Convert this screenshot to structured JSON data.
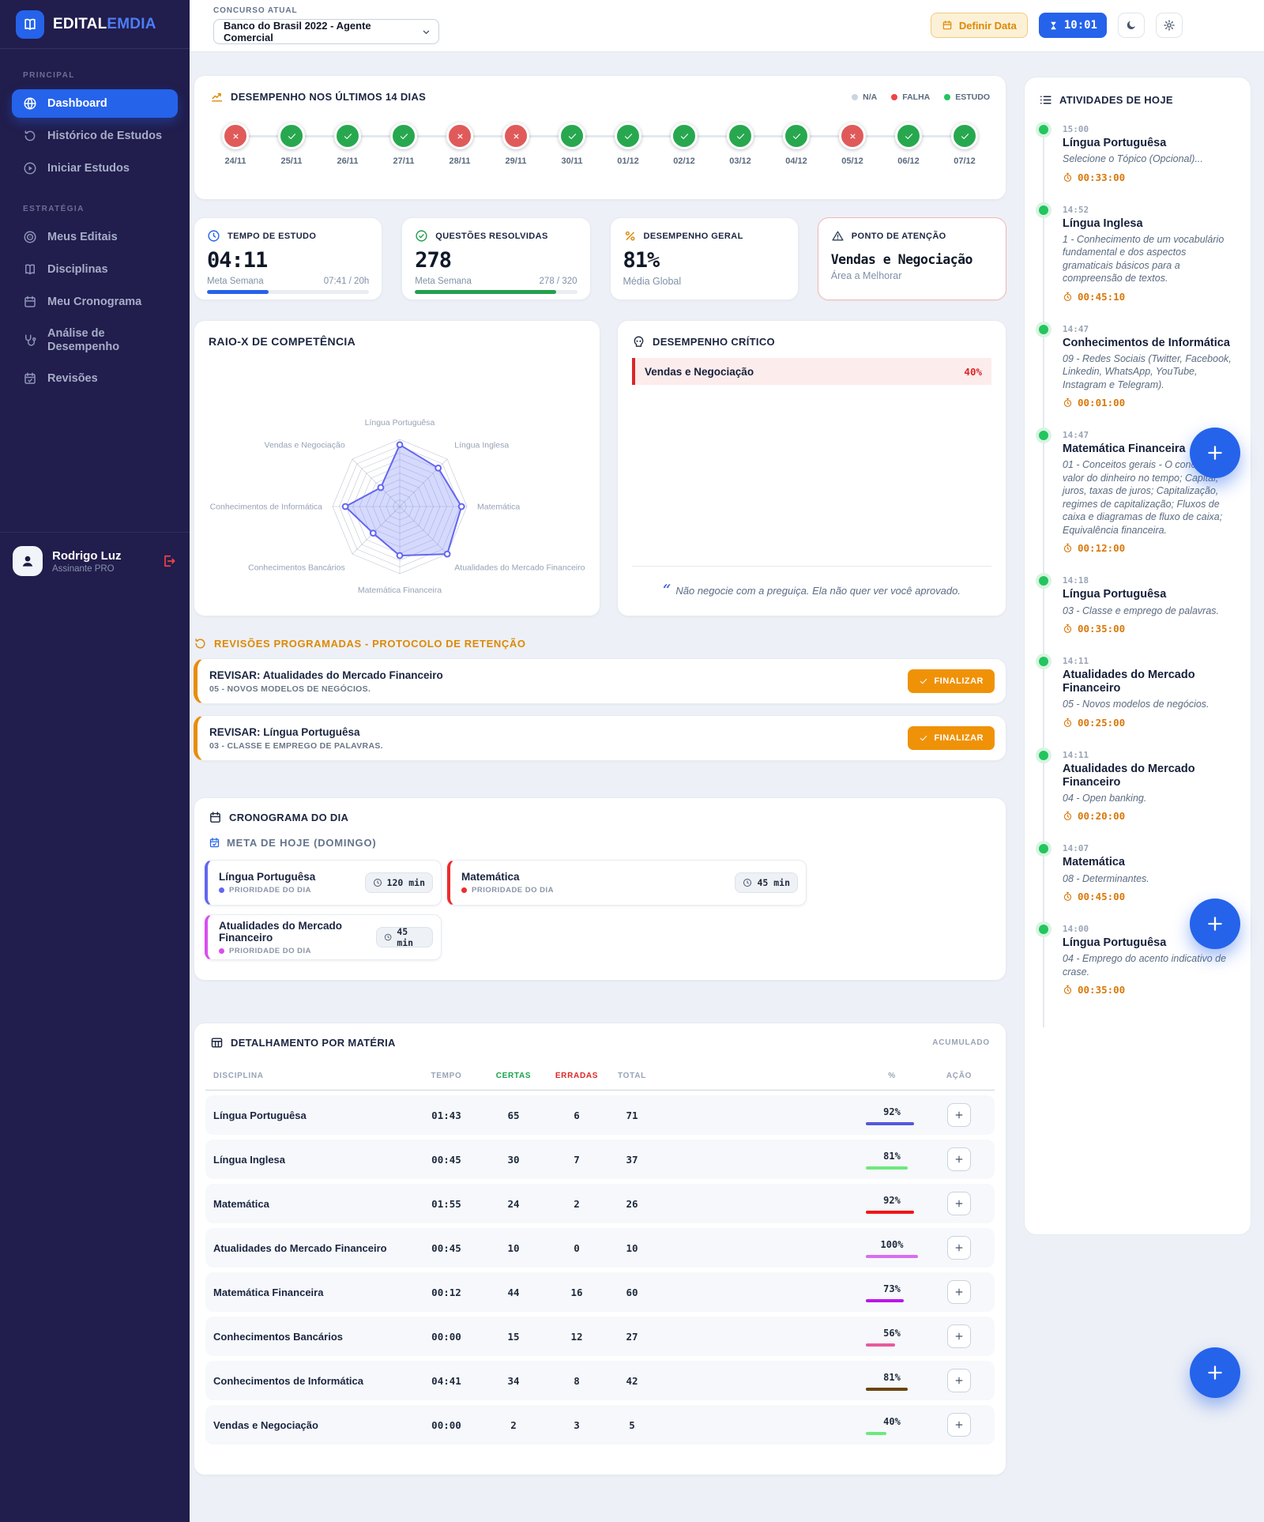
{
  "brand": {
    "name_primary": "EDITAL",
    "name_secondary": "EMDIA"
  },
  "topbar": {
    "label": "CONCURSO ATUAL",
    "contest": "Banco do Brasil 2022 - Agente Comercial",
    "definir_data": "Definir Data",
    "timer": "10:01"
  },
  "sidebar": {
    "sections": [
      {
        "label": "PRINCIPAL",
        "items": [
          {
            "icon": "globe",
            "label": "Dashboard",
            "active": true
          },
          {
            "icon": "history",
            "label": "Histórico de Estudos",
            "active": false
          },
          {
            "icon": "play",
            "label": "Iniciar Estudos",
            "active": false
          }
        ]
      },
      {
        "label": "ESTRATÉGIA",
        "items": [
          {
            "icon": "target",
            "label": "Meus Editais",
            "active": false
          },
          {
            "icon": "book",
            "label": "Disciplinas",
            "active": false
          },
          {
            "icon": "calendar",
            "label": "Meu Cronograma",
            "active": false
          },
          {
            "icon": "stethoscope",
            "label": "Análise de Desempenho",
            "active": false
          },
          {
            "icon": "calendar-check",
            "label": "Revisões",
            "active": false
          }
        ]
      }
    ],
    "user": {
      "name": "Rodrigo Luz",
      "plan": "Assinante PRO"
    }
  },
  "performance": {
    "title": "DESEMPENHO NOS ÚLTIMOS 14 DIAS",
    "legend": [
      {
        "label": "N/A",
        "color": "#cbd5e1"
      },
      {
        "label": "FALHA",
        "color": "#ef4444"
      },
      {
        "label": "ESTUDO",
        "color": "#22c55e"
      }
    ],
    "days": [
      {
        "date": "24/11",
        "status": "fail"
      },
      {
        "date": "25/11",
        "status": "ok"
      },
      {
        "date": "26/11",
        "status": "ok"
      },
      {
        "date": "27/11",
        "status": "ok"
      },
      {
        "date": "28/11",
        "status": "fail"
      },
      {
        "date": "29/11",
        "status": "fail"
      },
      {
        "date": "30/11",
        "status": "ok"
      },
      {
        "date": "01/12",
        "status": "ok"
      },
      {
        "date": "02/12",
        "status": "ok"
      },
      {
        "date": "03/12",
        "status": "ok"
      },
      {
        "date": "04/12",
        "status": "ok"
      },
      {
        "date": "05/12",
        "status": "fail"
      },
      {
        "date": "06/12",
        "status": "ok"
      },
      {
        "date": "07/12",
        "status": "ok"
      }
    ]
  },
  "stats": {
    "tempo": {
      "title": "TEMPO DE ESTUDO",
      "value": "04:11",
      "meta_label": "Meta Semana",
      "meta_value": "07:41 / 20h",
      "pct": 38,
      "color": "#2563eb"
    },
    "questoes": {
      "title": "QUESTÕES RESOLVIDAS",
      "value": "278",
      "meta_label": "Meta Semana",
      "meta_value": "278 / 320",
      "pct": 87,
      "color": "#21a04d"
    },
    "geral": {
      "title": "DESEMPENHO GERAL",
      "value": "81%",
      "caption": "Média Global"
    },
    "atencao": {
      "title": "PONTO DE ATENÇÃO",
      "value": "Vendas e Negociação",
      "caption": "Área a Melhorar"
    }
  },
  "chart_data": {
    "type": "radar",
    "title": "RAIO-X DE COMPETÊNCIA",
    "categories": [
      "Língua Portuguêsa",
      "Língua Inglesa",
      "Matemática",
      "Atualidades do Mercado Financeiro",
      "Matemática Financeira",
      "Conhecimentos Bancários",
      "Conhecimentos de Informática",
      "Vendas e Negociação"
    ],
    "values": [
      92,
      81,
      92,
      100,
      73,
      56,
      81,
      40
    ],
    "max": 100,
    "grid_levels": 10,
    "stroke": "#6366f1",
    "fill": "rgba(129,140,248,0.33)"
  },
  "critical": {
    "title": "DESEMPENHO CRÍTICO",
    "subject": "Vendas e Negociação",
    "value": "40%",
    "quote": "Não negocie com a preguiça. Ela não quer ver você aprovado."
  },
  "revisoes": {
    "title": "REVISÕES PROGRAMADAS - PROTOCOLO DE RETENÇÃO",
    "button": "FINALIZAR",
    "items": [
      {
        "title": "REVISAR: Atualidades do Mercado Financeiro",
        "topic": "05 - NOVOS MODELOS DE NEGÓCIOS."
      },
      {
        "title": "REVISAR: Língua Portuguêsa",
        "topic": "03 - CLASSE E EMPREGO DE PALAVRAS."
      }
    ]
  },
  "cronograma": {
    "title": "CRONOGRAMA DO DIA",
    "subtitle": "META DE HOJE (DOMINGO)",
    "priority_label": "PRIORIDADE DO DIA",
    "tasks": [
      {
        "name": "Língua Portuguêsa",
        "duration": "120 min",
        "color": "#6366f1"
      },
      {
        "name": "Matemática",
        "duration": "45 min",
        "color": "#ee2c2c"
      },
      {
        "name": "Atualidades do Mercado Financeiro",
        "duration": "45 min",
        "color": "#d94ef0"
      }
    ]
  },
  "detalhamento": {
    "title": "DETALHAMENTO POR MATÉRIA",
    "badge": "ACUMULADO",
    "columns": [
      "DISCIPLINA",
      "TEMPO",
      "CERTAS",
      "ERRADAS",
      "TOTAL",
      "%",
      "AÇÃO"
    ],
    "rows": [
      {
        "name": "Língua Portuguêsa",
        "tempo": "01:43",
        "certas": "65",
        "erradas": "6",
        "total": "71",
        "pct": 92,
        "bar": "#5558dd"
      },
      {
        "name": "Língua Inglesa",
        "tempo": "00:45",
        "certas": "30",
        "erradas": "7",
        "total": "37",
        "pct": 81,
        "bar": "#6ee87e"
      },
      {
        "name": "Matemática",
        "tempo": "01:55",
        "certas": "24",
        "erradas": "2",
        "total": "26",
        "pct": 92,
        "bar": "#f21616"
      },
      {
        "name": "Atualidades do Mercado Financeiro",
        "tempo": "00:45",
        "certas": "10",
        "erradas": "0",
        "total": "10",
        "pct": 100,
        "bar": "#d96df2"
      },
      {
        "name": "Matemática Financeira",
        "tempo": "00:12",
        "certas": "44",
        "erradas": "16",
        "total": "60",
        "pct": 73,
        "bar": "#bb16e8"
      },
      {
        "name": "Conhecimentos Bancários",
        "tempo": "00:00",
        "certas": "15",
        "erradas": "12",
        "total": "27",
        "pct": 56,
        "bar": "#e85a9e"
      },
      {
        "name": "Conhecimentos de Informática",
        "tempo": "04:41",
        "certas": "34",
        "erradas": "8",
        "total": "42",
        "pct": 81,
        "bar": "#6b440e"
      },
      {
        "name": "Vendas e Negociação",
        "tempo": "00:00",
        "certas": "2",
        "erradas": "3",
        "total": "5",
        "pct": 40,
        "bar": "#6ee87e"
      }
    ]
  },
  "atividades": {
    "title": "ATIVIDADES DE HOJE",
    "items": [
      {
        "time": "15:00",
        "title": "Língua Portuguêsa",
        "desc": "Selecione o Tópico (Opcional)...",
        "duration": "00:33:00"
      },
      {
        "time": "14:52",
        "title": "Língua Inglesa",
        "desc": "1 - Conhecimento de um vocabulário fundamental e dos aspectos gramaticais básicos para a compreensão de textos.",
        "duration": "00:45:10"
      },
      {
        "time": "14:47",
        "title": "Conhecimentos de Informática",
        "desc": "09 - Redes Sociais (Twitter, Facebook, Linkedin, WhatsApp, YouTube, Instagram e Telegram).",
        "duration": "00:01:00"
      },
      {
        "time": "14:47",
        "title": "Matemática Financeira",
        "desc": "01 - Conceitos gerais - O conceito do valor do dinheiro no tempo; Capital, juros, taxas de juros; Capitalização, regimes de capitalização; Fluxos de caixa e diagramas de fluxo de caixa; Equivalência financeira.",
        "duration": "00:12:00"
      },
      {
        "time": "14:18",
        "title": "Língua Portuguêsa",
        "desc": "03 - Classe e emprego de palavras.",
        "duration": "00:35:00"
      },
      {
        "time": "14:11",
        "title": "Atualidades do Mercado Financeiro",
        "desc": "05 - Novos modelos de negócios.",
        "duration": "00:25:00"
      },
      {
        "time": "14:11",
        "title": "Atualidades do Mercado Financeiro",
        "desc": "04 - Open banking.",
        "duration": "00:20:00"
      },
      {
        "time": "14:07",
        "title": "Matemática",
        "desc": "08 - Determinantes.",
        "duration": "00:45:00"
      },
      {
        "time": "14:00",
        "title": "Língua Portuguêsa",
        "desc": "04 - Emprego do acento indicativo de crase.",
        "duration": "00:35:00"
      }
    ]
  }
}
